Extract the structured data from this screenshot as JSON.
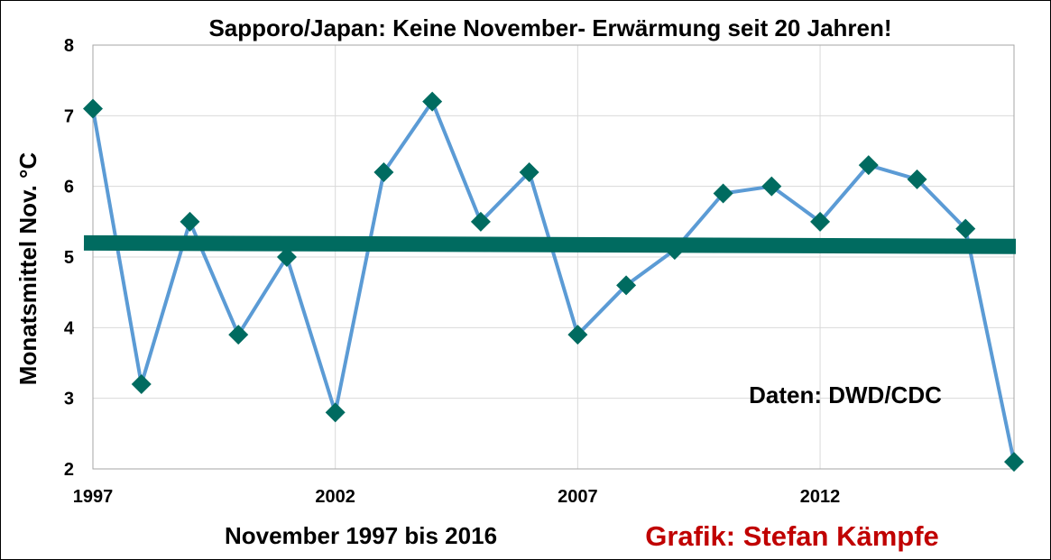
{
  "chart_data": {
    "type": "line",
    "title": "Sapporo/Japan:  Keine November- Erwärmung seit 20 Jahren!",
    "xlabel": "November 1997 bis 2016",
    "ylabel": "Monatsmittel Nov. °C",
    "x": [
      1997,
      1998,
      1999,
      2000,
      2001,
      2002,
      2003,
      2004,
      2005,
      2006,
      2007,
      2008,
      2009,
      2010,
      2011,
      2012,
      2013,
      2014,
      2015,
      2016
    ],
    "series": [
      {
        "values": [
          7.1,
          3.2,
          5.5,
          3.9,
          5.0,
          2.8,
          6.2,
          7.2,
          5.5,
          6.2,
          3.9,
          4.6,
          5.1,
          5.9,
          6.0,
          5.5,
          6.3,
          6.1,
          5.4,
          2.1
        ],
        "color": "#5b9bd5",
        "marker_color": "#006b60",
        "marker": "diamond"
      }
    ],
    "trendline": {
      "start": 5.2,
      "end": 5.15,
      "color": "#006b60"
    },
    "xlim": [
      1997,
      2016
    ],
    "ylim": [
      2,
      8
    ],
    "yticks": [
      2,
      3,
      4,
      5,
      6,
      7,
      8
    ],
    "xticks": [
      1997,
      2002,
      2007,
      2012
    ],
    "grid": true,
    "annotation": "Daten: DWD/CDC",
    "credit": "Grafik: Stefan Kämpfe",
    "credit_color": "#c00000"
  }
}
